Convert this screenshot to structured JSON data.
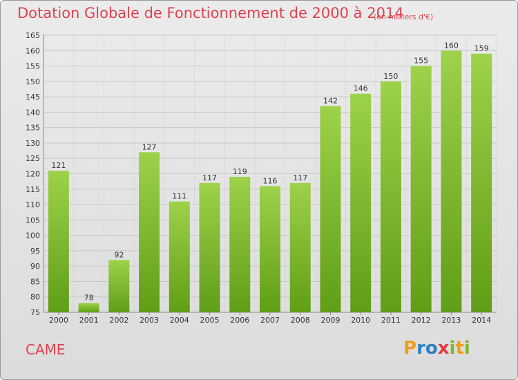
{
  "chart_data": {
    "type": "bar",
    "title": "Dotation Globale de Fonctionnement de 2000 à 2014",
    "subtitle": "(en milliers d'€)",
    "categories": [
      "2000",
      "2001",
      "2002",
      "2003",
      "2004",
      "2005",
      "2006",
      "2007",
      "2008",
      "2009",
      "2010",
      "2011",
      "2012",
      "2013",
      "2014"
    ],
    "values": [
      121,
      78,
      92,
      127,
      111,
      117,
      119,
      116,
      117,
      142,
      146,
      150,
      155,
      160,
      159
    ],
    "ylim": [
      75,
      165
    ],
    "yticks": [
      75,
      80,
      85,
      90,
      95,
      100,
      105,
      110,
      115,
      120,
      125,
      130,
      135,
      140,
      145,
      150,
      155,
      160,
      165
    ],
    "xlabel": "",
    "ylabel": "",
    "grid": true
  },
  "commune": "CAME",
  "brand": {
    "letters": [
      "P",
      "r",
      "o",
      "x",
      "i",
      "t",
      "i"
    ],
    "colors": [
      "#f39c1e",
      "#2b7fc4",
      "#2b7fc4",
      "#e63946",
      "#7cb82f",
      "#f39c1e",
      "#7cb82f"
    ]
  },
  "colors": {
    "bar_top": "#9dd24a",
    "bar_bottom": "#5f9e16",
    "title": "#e0424e"
  }
}
